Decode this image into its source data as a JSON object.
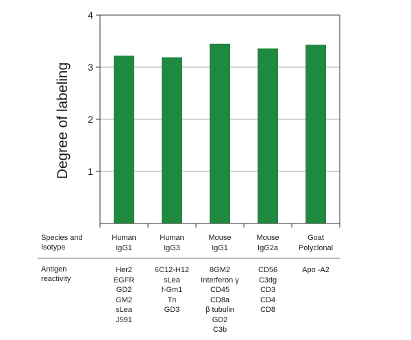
{
  "chart_data": {
    "type": "bar",
    "categories": [
      "Human IgG1",
      "Human IgG3",
      "Mouse IgG1",
      "Mouse IgG2a",
      "Goat Polyclonal"
    ],
    "values": [
      3.22,
      3.19,
      3.45,
      3.36,
      3.43
    ],
    "ylabel": "Degree of labeling",
    "ylim": [
      0,
      4
    ],
    "yticks": [
      1,
      2,
      3,
      4
    ],
    "grid": "horizontal",
    "bar_color": "#1f8a3f"
  },
  "table": {
    "species_label": [
      "Species and",
      "Isotype"
    ],
    "antigen_label": [
      "Antigen",
      "reactivity"
    ],
    "columns": [
      {
        "species": [
          "Human",
          "IgG1"
        ],
        "antigens": [
          "Her2",
          "EGFR",
          "GD2",
          "GM2",
          "sLea",
          "J591"
        ]
      },
      {
        "species": [
          "Human",
          "IgG3"
        ],
        "antigens": [
          "6C12-H12",
          "sLea",
          "f-Gm1",
          "Tn",
          "GD3"
        ]
      },
      {
        "species": [
          "Mouse",
          "IgG1"
        ],
        "antigens": [
          "8GM2",
          "Interferon γ",
          "CD45",
          "CD8a",
          "β tubulin",
          "GD2",
          "C3b"
        ]
      },
      {
        "species": [
          "Mouse",
          "IgG2a"
        ],
        "antigens": [
          "CD56",
          "C3dg",
          "CD3",
          "CD4",
          "CD8"
        ]
      },
      {
        "species": [
          "Goat",
          "Polyclonal"
        ],
        "antigens": [
          "Apo -A2"
        ]
      }
    ]
  }
}
